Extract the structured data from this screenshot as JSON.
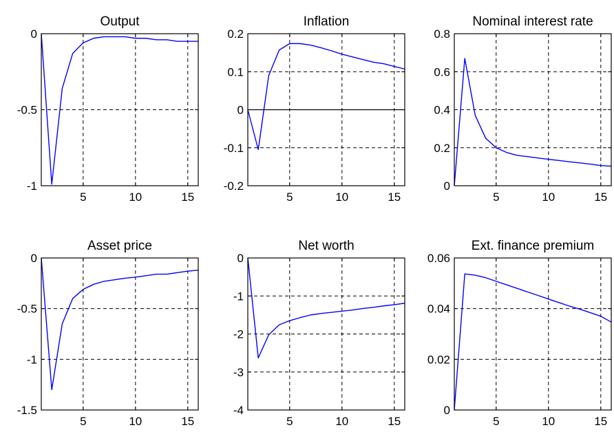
{
  "chart_data": [
    {
      "type": "line",
      "title": "Output",
      "xlim": [
        1,
        16
      ],
      "ylim": [
        -1,
        0
      ],
      "xticks": [
        5,
        10,
        15
      ],
      "yticks": [
        -1,
        -0.5,
        0
      ],
      "xtick_labels": [
        "5",
        "10",
        "15"
      ],
      "ytick_labels": [
        "-1",
        "-0.5",
        "0"
      ],
      "grid": true,
      "zero_line": false,
      "series": [
        {
          "color": "#0000ff",
          "x": [
            1,
            2,
            3,
            4,
            5,
            6,
            7,
            8,
            9,
            10,
            11,
            12,
            13,
            14,
            15,
            16
          ],
          "y": [
            0,
            -0.99,
            -0.36,
            -0.13,
            -0.06,
            -0.03,
            -0.02,
            -0.02,
            -0.02,
            -0.03,
            -0.03,
            -0.04,
            -0.04,
            -0.05,
            -0.05,
            -0.05
          ]
        }
      ]
    },
    {
      "type": "line",
      "title": "Inflation",
      "xlim": [
        1,
        16
      ],
      "ylim": [
        -0.2,
        0.2
      ],
      "xticks": [
        5,
        10,
        15
      ],
      "yticks": [
        -0.2,
        -0.1,
        0,
        0.1,
        0.2
      ],
      "xtick_labels": [
        "5",
        "10",
        "15"
      ],
      "ytick_labels": [
        "-0.2",
        "-0.1",
        "0",
        "0.1",
        "0.2"
      ],
      "grid": true,
      "zero_line": true,
      "series": [
        {
          "color": "#0000ff",
          "x": [
            1,
            2,
            3,
            4,
            5,
            6,
            7,
            8,
            9,
            10,
            11,
            12,
            13,
            14,
            15,
            16
          ],
          "y": [
            0,
            -0.105,
            0.09,
            0.157,
            0.174,
            0.174,
            0.17,
            0.163,
            0.155,
            0.146,
            0.139,
            0.132,
            0.125,
            0.121,
            0.114,
            0.107
          ]
        }
      ]
    },
    {
      "type": "line",
      "title": "Nominal interest rate",
      "xlim": [
        1,
        16
      ],
      "ylim": [
        0,
        0.8
      ],
      "xticks": [
        5,
        10,
        15
      ],
      "yticks": [
        0,
        0.2,
        0.4,
        0.6,
        0.8
      ],
      "xtick_labels": [
        "5",
        "10",
        "15"
      ],
      "ytick_labels": [
        "0",
        "0.2",
        "0.4",
        "0.6",
        "0.8"
      ],
      "grid": true,
      "zero_line": false,
      "series": [
        {
          "color": "#0000ff",
          "x": [
            1,
            2,
            3,
            4,
            5,
            6,
            7,
            8,
            9,
            10,
            11,
            12,
            13,
            14,
            15,
            16
          ],
          "y": [
            0,
            0.67,
            0.37,
            0.25,
            0.2,
            0.175,
            0.16,
            0.153,
            0.146,
            0.139,
            0.133,
            0.126,
            0.12,
            0.114,
            0.106,
            0.103
          ]
        }
      ]
    },
    {
      "type": "line",
      "title": "Asset price",
      "xlim": [
        1,
        16
      ],
      "ylim": [
        -1.5,
        0
      ],
      "xticks": [
        5,
        10,
        15
      ],
      "yticks": [
        -1.5,
        -1,
        -0.5,
        0
      ],
      "xtick_labels": [
        "5",
        "10",
        "15"
      ],
      "ytick_labels": [
        "-1.5",
        "-1",
        "-0.5",
        "0"
      ],
      "grid": true,
      "zero_line": false,
      "series": [
        {
          "color": "#0000ff",
          "x": [
            1,
            2,
            3,
            4,
            5,
            6,
            7,
            8,
            9,
            10,
            11,
            12,
            13,
            14,
            15,
            16
          ],
          "y": [
            0,
            -1.3,
            -0.65,
            -0.4,
            -0.31,
            -0.26,
            -0.23,
            -0.215,
            -0.2,
            -0.19,
            -0.175,
            -0.16,
            -0.16,
            -0.145,
            -0.13,
            -0.12
          ]
        }
      ]
    },
    {
      "type": "line",
      "title": "Net worth",
      "xlim": [
        1,
        16
      ],
      "ylim": [
        -4,
        0
      ],
      "xticks": [
        5,
        10,
        15
      ],
      "yticks": [
        -4,
        -3,
        -2,
        -1,
        0
      ],
      "xtick_labels": [
        "5",
        "10",
        "15"
      ],
      "ytick_labels": [
        "-4",
        "-3",
        "-2",
        "-1",
        "0"
      ],
      "grid": true,
      "zero_line": false,
      "series": [
        {
          "color": "#0000ff",
          "x": [
            1,
            2,
            3,
            4,
            5,
            6,
            7,
            8,
            9,
            10,
            11,
            12,
            13,
            14,
            15,
            16
          ],
          "y": [
            0,
            -2.63,
            -2.02,
            -1.76,
            -1.65,
            -1.57,
            -1.5,
            -1.46,
            -1.43,
            -1.4,
            -1.37,
            -1.33,
            -1.3,
            -1.26,
            -1.23,
            -1.19
          ]
        }
      ]
    },
    {
      "type": "line",
      "title": "Ext. finance premium",
      "xlim": [
        1,
        16
      ],
      "ylim": [
        0,
        0.06
      ],
      "xticks": [
        5,
        10,
        15
      ],
      "yticks": [
        0,
        0.02,
        0.04,
        0.06
      ],
      "xtick_labels": [
        "5",
        "10",
        "15"
      ],
      "ytick_labels": [
        "0",
        "0.02",
        "0.04",
        "0.06"
      ],
      "grid": true,
      "zero_line": false,
      "series": [
        {
          "color": "#0000ff",
          "x": [
            1,
            2,
            3,
            4,
            5,
            6,
            7,
            8,
            9,
            10,
            11,
            12,
            13,
            14,
            15,
            16
          ],
          "y": [
            0,
            0.0537,
            0.0532,
            0.0522,
            0.0508,
            0.0494,
            0.048,
            0.0466,
            0.0452,
            0.0438,
            0.0424,
            0.041,
            0.0398,
            0.0384,
            0.037,
            0.0347
          ]
        }
      ]
    }
  ]
}
